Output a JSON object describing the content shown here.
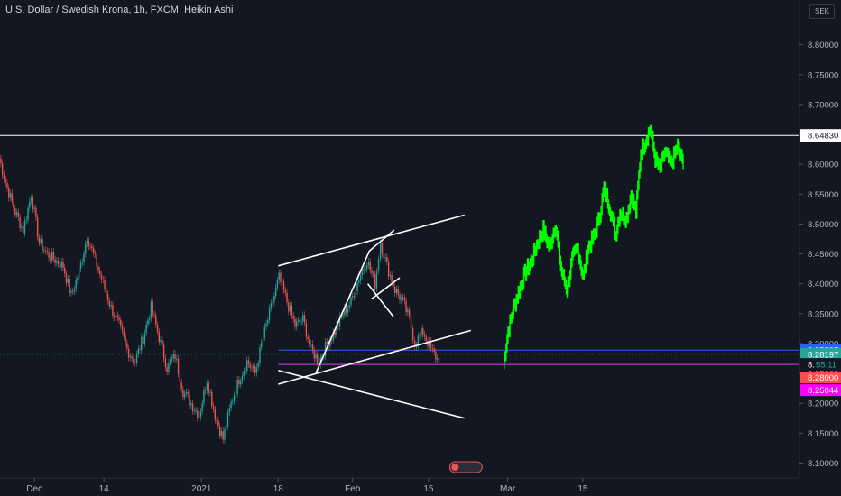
{
  "header": {
    "title": "U.S. Dollar / Swedish Krona, 1h, FXCM, Heikin Ashi",
    "currency_button": "SEK"
  },
  "chart_data": {
    "type": "line",
    "symbol": "USDSEK",
    "interval": "1h",
    "style": "Heikin Ashi",
    "yaxis": {
      "range": [
        8.075,
        8.875
      ],
      "ticks": [
        "8.80000",
        "8.75000",
        "8.70000",
        "8.65000",
        "8.60000",
        "8.55000",
        "8.50000",
        "8.45000",
        "8.40000",
        "8.35000",
        "8.30000",
        "8.25000",
        "8.20000",
        "8.15000",
        "8.10000"
      ],
      "tick_values": [
        8.8,
        8.75,
        8.7,
        8.65,
        8.6,
        8.55,
        8.5,
        8.45,
        8.4,
        8.35,
        8.3,
        8.25,
        8.2,
        8.15,
        8.1
      ]
    },
    "xaxis": {
      "range": [
        0,
        100
      ],
      "ticks": [
        {
          "label": "Dec",
          "x": 4.3
        },
        {
          "label": "14",
          "x": 13.0
        },
        {
          "label": "2021",
          "x": 25.2
        },
        {
          "label": "18",
          "x": 34.8
        },
        {
          "label": "Feb",
          "x": 44.1
        },
        {
          "label": "15",
          "x": 53.6
        },
        {
          "label": "Mar",
          "x": 63.5
        },
        {
          "label": "15",
          "x": 72.9
        }
      ]
    },
    "price_series": {
      "name": "USDSEK",
      "up_color": "#26a69a",
      "down_color": "#ef5350",
      "points": [
        [
          0.0,
          8.61
        ],
        [
          1.0,
          8.56
        ],
        [
          2.0,
          8.52
        ],
        [
          3.0,
          8.49
        ],
        [
          4.0,
          8.55
        ],
        [
          5.0,
          8.47
        ],
        [
          6.0,
          8.45
        ],
        [
          7.0,
          8.44
        ],
        [
          8.0,
          8.43
        ],
        [
          9.0,
          8.38
        ],
        [
          10.0,
          8.42
        ],
        [
          11.0,
          8.48
        ],
        [
          12.0,
          8.44
        ],
        [
          13.0,
          8.4
        ],
        [
          14.0,
          8.36
        ],
        [
          15.0,
          8.33
        ],
        [
          16.0,
          8.29
        ],
        [
          17.0,
          8.27
        ],
        [
          18.0,
          8.31
        ],
        [
          19.0,
          8.36
        ],
        [
          20.0,
          8.31
        ],
        [
          21.0,
          8.26
        ],
        [
          22.0,
          8.28
        ],
        [
          23.0,
          8.22
        ],
        [
          24.0,
          8.2
        ],
        [
          25.0,
          8.18
        ],
        [
          26.0,
          8.24
        ],
        [
          27.0,
          8.18
        ],
        [
          28.0,
          8.14
        ],
        [
          29.0,
          8.2
        ],
        [
          30.0,
          8.24
        ],
        [
          31.0,
          8.27
        ],
        [
          32.0,
          8.25
        ],
        [
          33.0,
          8.31
        ],
        [
          34.0,
          8.36
        ],
        [
          35.0,
          8.41
        ],
        [
          36.0,
          8.37
        ],
        [
          37.0,
          8.33
        ],
        [
          38.0,
          8.34
        ],
        [
          39.0,
          8.29
        ],
        [
          40.0,
          8.27
        ],
        [
          41.0,
          8.3
        ],
        [
          42.0,
          8.32
        ],
        [
          43.0,
          8.35
        ],
        [
          44.0,
          8.37
        ],
        [
          45.0,
          8.41
        ],
        [
          46.0,
          8.44
        ],
        [
          47.0,
          8.4
        ],
        [
          47.7,
          8.47
        ],
        [
          48.5,
          8.43
        ],
        [
          49.5,
          8.39
        ],
        [
          50.5,
          8.37
        ],
        [
          51.3,
          8.34
        ],
        [
          52.0,
          8.3
        ],
        [
          53.0,
          8.32
        ],
        [
          54.0,
          8.29
        ],
        [
          55.0,
          8.27
        ]
      ]
    },
    "projection_series": {
      "name": "Projection",
      "color": "#00ff00",
      "points": [
        [
          63.0,
          8.265
        ],
        [
          63.6,
          8.32
        ],
        [
          64.3,
          8.36
        ],
        [
          65.0,
          8.39
        ],
        [
          65.8,
          8.42
        ],
        [
          66.6,
          8.44
        ],
        [
          67.3,
          8.47
        ],
        [
          68.0,
          8.49
        ],
        [
          68.8,
          8.46
        ],
        [
          69.5,
          8.5
        ],
        [
          70.3,
          8.42
        ],
        [
          71.0,
          8.39
        ],
        [
          71.6,
          8.44
        ],
        [
          72.3,
          8.46
        ],
        [
          73.0,
          8.41
        ],
        [
          73.6,
          8.46
        ],
        [
          74.4,
          8.48
        ],
        [
          75.0,
          8.51
        ],
        [
          75.6,
          8.56
        ],
        [
          76.3,
          8.53
        ],
        [
          77.0,
          8.48
        ],
        [
          77.6,
          8.52
        ],
        [
          78.4,
          8.51
        ],
        [
          79.0,
          8.55
        ],
        [
          79.6,
          8.52
        ],
        [
          80.2,
          8.62
        ],
        [
          80.8,
          8.64
        ],
        [
          81.4,
          8.66
        ],
        [
          82.0,
          8.61
        ],
        [
          82.6,
          8.59
        ],
        [
          83.2,
          8.62
        ],
        [
          84.0,
          8.6
        ],
        [
          84.8,
          8.63
        ],
        [
          85.5,
          8.6
        ]
      ]
    },
    "horizontal_levels": [
      {
        "name": "resistance-line",
        "value": 8.6483,
        "label": "8.64830",
        "color": "#ffffff"
      },
      {
        "name": "blue-level-line",
        "value": 8.28897,
        "label": "8.28897",
        "color": "#2962ff"
      },
      {
        "name": "last-price-line",
        "value": 8.28197,
        "label": "8.28197",
        "color": "#26a69a"
      },
      {
        "name": "magenta-level-line",
        "value": 8.265,
        "label": "8.",
        "color": "#e040fb"
      }
    ],
    "extra_labels": [
      {
        "name": "countdown-label",
        "text": "55:11",
        "color": "#26a69a"
      },
      {
        "name": "level-label-828000",
        "text": "8.28000",
        "color": "#ff4d4d"
      },
      {
        "name": "level-label-825044",
        "text": "8.25044",
        "color": "#ff00ff"
      }
    ],
    "trend_lines": [
      {
        "from": [
          34.8,
          8.43
        ],
        "to": [
          58.1,
          8.515
        ]
      },
      {
        "from": [
          34.8,
          8.232
        ],
        "to": [
          58.9,
          8.322
        ]
      },
      {
        "from": [
          34.8,
          8.255
        ],
        "to": [
          58.1,
          8.175
        ]
      },
      {
        "from": [
          39.5,
          8.25
        ],
        "to": [
          46.2,
          8.455
        ]
      },
      {
        "from": [
          46.2,
          8.455
        ],
        "to": [
          49.3,
          8.49
        ]
      },
      {
        "from": [
          46.0,
          8.4
        ],
        "to": [
          49.2,
          8.345
        ]
      },
      {
        "from": [
          46.5,
          8.375
        ],
        "to": [
          50.0,
          8.41
        ]
      }
    ],
    "grid": false,
    "legend": "none"
  }
}
